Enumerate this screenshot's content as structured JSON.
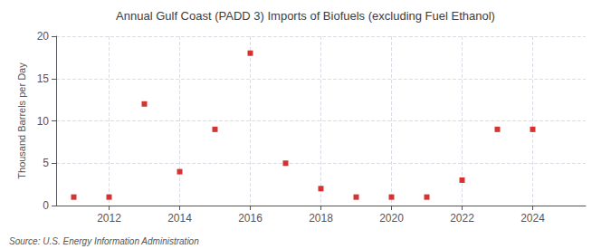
{
  "chart_data": {
    "type": "scatter",
    "title": "Annual Gulf Coast (PADD 3) Imports of Biofuels (excluding Fuel Ethanol)",
    "ylabel": "Thousand Barrels per Day",
    "annotations": [
      "Source: U.S. Energy Information Administration"
    ],
    "x": [
      2011,
      2012,
      2013,
      2014,
      2015,
      2016,
      2017,
      2018,
      2019,
      2020,
      2021,
      2022,
      2023,
      2024
    ],
    "values": [
      1,
      1,
      12,
      4,
      9,
      18,
      5,
      2,
      1,
      1,
      1,
      3,
      9,
      9
    ],
    "color": "#cc0000",
    "marker": "square",
    "xlim": [
      2010.5,
      2025.5
    ],
    "xticks": [
      2012,
      2014,
      2016,
      2018,
      2020,
      2022,
      2024
    ],
    "ylim": [
      0,
      20
    ],
    "yticks": [
      0,
      5,
      10,
      15,
      20
    ],
    "grid": true
  }
}
